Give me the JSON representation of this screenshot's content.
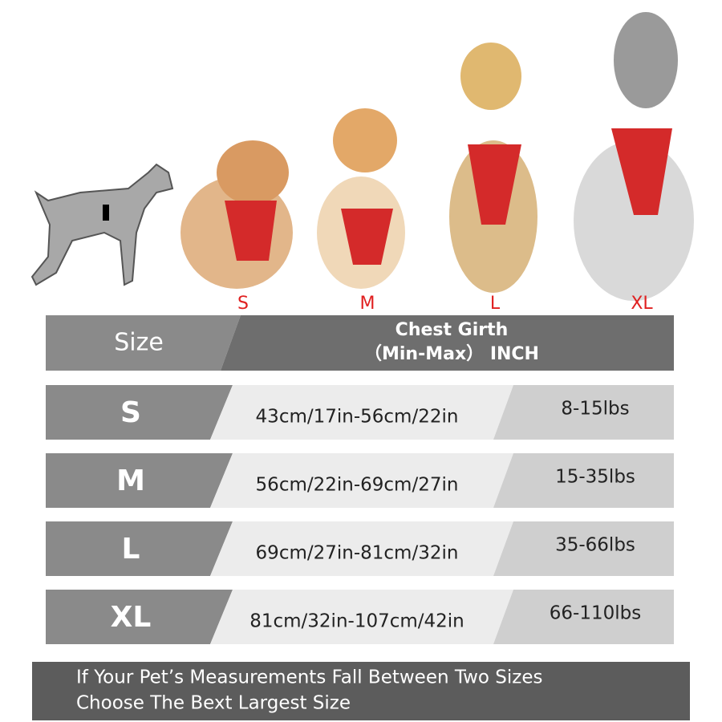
{
  "dog_labels": [
    "S",
    "M",
    "L",
    "XL"
  ],
  "table": {
    "header": [
      "Size",
      "Chest Girth",
      "（Min-Max） INCH"
    ],
    "rows": [
      [
        "S",
        "43cm/17in-56cm/22in",
        "8-15lbs"
      ],
      [
        "M",
        "56cm/22in-69cm/27in",
        "15-35lbs"
      ],
      [
        "L",
        "69cm/27in-81cm/32in",
        "35-66lbs"
      ],
      [
        "XL",
        "81cm/32in-107cm/42in",
        "66-110lbs"
      ]
    ]
  },
  "footer": [
    "If Your Pet’s Measurements Fall Between Two Sizes",
    "Choose The Bext Largest Size"
  ]
}
